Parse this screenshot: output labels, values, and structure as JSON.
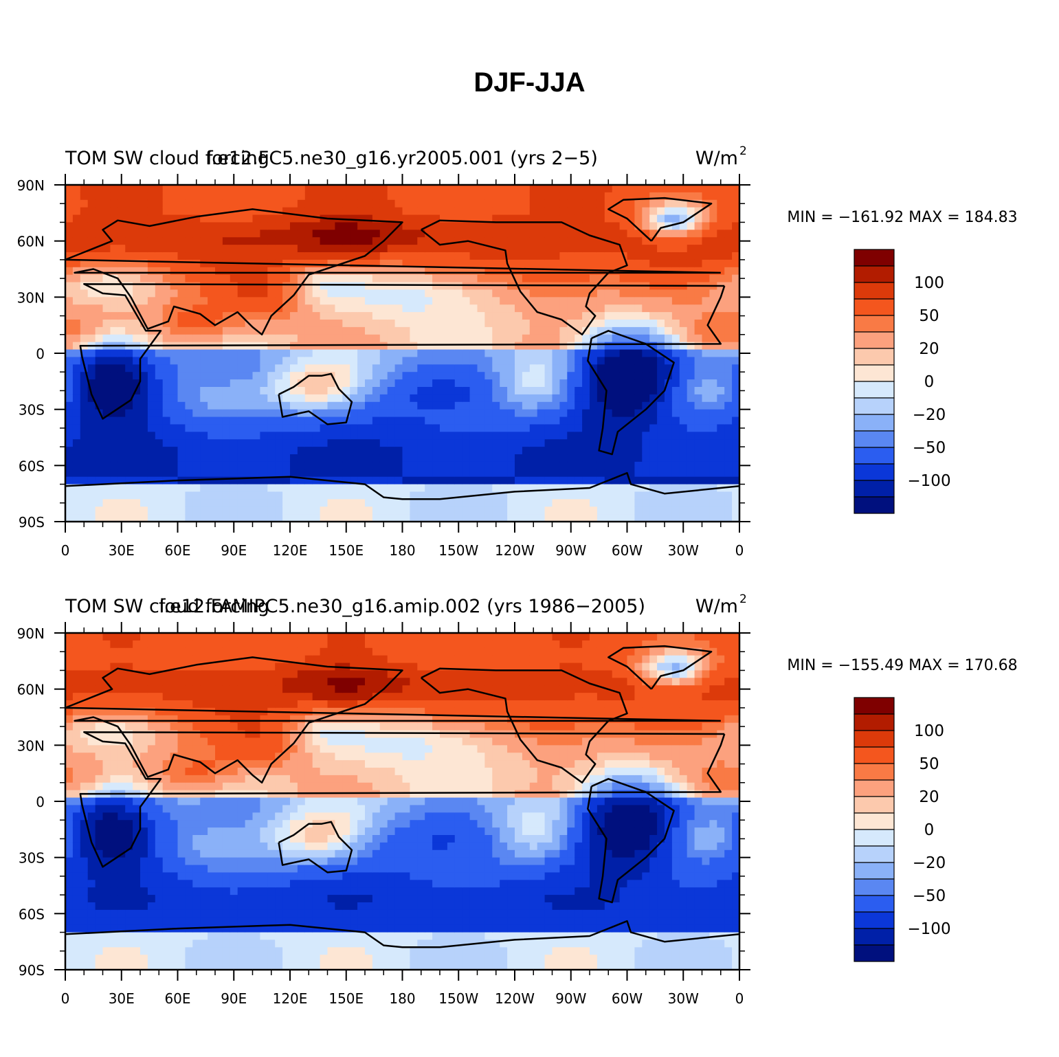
{
  "title": "DJF-JJA",
  "chart_data": [
    {
      "type": "heatmap",
      "variable": "TOM SW cloud forcing",
      "case": "f.e12.FC5.ne30_g16.yr2005.001 (yrs 2−5)",
      "units": "W/m",
      "units_sup": "2",
      "stats": "MIN = −161.92  MAX = 184.83",
      "min": -161.92,
      "max": 184.83,
      "y_ticks": [
        "90N",
        "60N",
        "30N",
        "0",
        "30S",
        "60S",
        "90S"
      ],
      "x_ticks": [
        "0",
        "30E",
        "60E",
        "90E",
        "120E",
        "150E",
        "180",
        "150W",
        "120W",
        "90W",
        "60W",
        "30W",
        "0"
      ],
      "colorbar_labels": [
        "100",
        "50",
        "20",
        "0",
        "−20",
        "−50",
        "−100"
      ],
      "levels": [
        130,
        100,
        75,
        50,
        35,
        20,
        10,
        0,
        -10,
        -20,
        -35,
        -50,
        -75,
        -100,
        -130
      ]
    },
    {
      "type": "heatmap",
      "variable": "TOM SW cloud forcing",
      "case": "f.e12.FAMIPC5.ne30_g16.amip.002 (yrs 1986−2005)",
      "units": "W/m",
      "units_sup": "2",
      "stats": "MIN = −155.49  MAX = 170.68",
      "min": -155.49,
      "max": 170.68,
      "y_ticks": [
        "90N",
        "60N",
        "30N",
        "0",
        "30S",
        "60S",
        "90S"
      ],
      "x_ticks": [
        "0",
        "30E",
        "60E",
        "90E",
        "120E",
        "150E",
        "180",
        "150W",
        "120W",
        "90W",
        "60W",
        "30W",
        "0"
      ],
      "colorbar_labels": [
        "100",
        "50",
        "20",
        "0",
        "−20",
        "−50",
        "−100"
      ],
      "levels": [
        130,
        100,
        75,
        50,
        35,
        20,
        10,
        0,
        -10,
        -20,
        -35,
        -50,
        -75,
        -100,
        -130
      ]
    }
  ],
  "colors": {
    "palette": [
      "#7f0000",
      "#b21c00",
      "#dc3a0a",
      "#f4561e",
      "#f97a45",
      "#fca17e",
      "#fcc9ad",
      "#fde6d4",
      "#d6e9fc",
      "#b7d2fb",
      "#8ab1f8",
      "#5a87f2",
      "#2b5df0",
      "#0b37d8",
      "#0020a8",
      "#00107e"
    ],
    "coast": "#000000"
  }
}
